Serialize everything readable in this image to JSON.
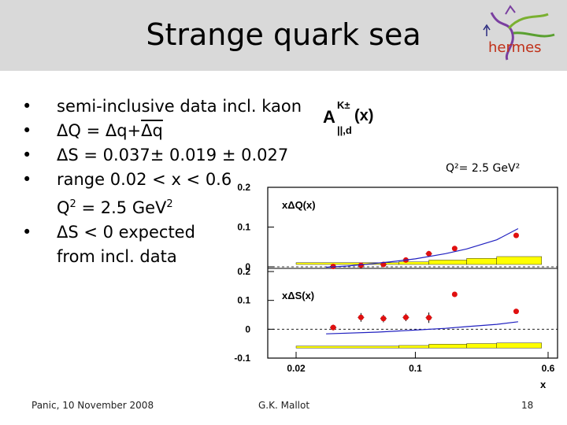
{
  "slide": {
    "title": "Strange quark sea",
    "logo_text": "hermes",
    "bullets": [
      {
        "marker": "•",
        "text": "semi-inclusive data incl. kaon"
      },
      {
        "marker": "•",
        "pre": "ΔQ = Δq+",
        "over": "Δq",
        "post": ""
      },
      {
        "marker": "•",
        "text": "ΔS = 0.037± 0.019 ± 0.027"
      },
      {
        "marker": "•",
        "text": "range 0.02 < x < 0.6"
      },
      {
        "marker": "",
        "pre": "Q",
        "sup1": "2",
        "mid": " = 2.5 GeV",
        "sup2": "2"
      },
      {
        "marker": "•",
        "text": "ΔS < 0 expected"
      },
      {
        "marker": "",
        "text": "from incl. data"
      }
    ],
    "footer_left": "Panic, 10 November 2008",
    "footer_center": "G.K. Mallot",
    "page_number": "18"
  },
  "chart_data": {
    "type": "scatter",
    "title_main": "A",
    "title_sup": "K±",
    "title_sub": "||,d",
    "title_arg": "(x)",
    "annotation": "Q²= 2.5 GeV²",
    "x_axis_label": "x",
    "x_scale": "log",
    "x_ticks": [
      "0.02",
      "0.1",
      "0.6"
    ],
    "panels": [
      {
        "label": "xΔQ(x)",
        "ylim": [
          0,
          0.2
        ],
        "y_ticks": [
          "0.2",
          "0.1",
          "0"
        ],
        "series": [
          {
            "kind": "points",
            "x": [
              0.033,
              0.048,
              0.065,
              0.088,
              0.12,
              0.17,
              0.39
            ],
            "y": [
              0.001,
              0.004,
              0.006,
              0.017,
              0.033,
              0.046,
              0.079
            ],
            "err": [
              0.003,
              0.005,
              0.005,
              0.005,
              0.007,
              0,
              0
            ],
            "color": "#e01010"
          },
          {
            "kind": "curve",
            "x": [
              0.03,
              0.04,
              0.05,
              0.07,
              0.1,
              0.15,
              0.2,
              0.3,
              0.4
            ],
            "y": [
              -0.001,
              0.002,
              0.006,
              0.012,
              0.02,
              0.033,
              0.045,
              0.068,
              0.096
            ],
            "color": "#2020c0"
          }
        ],
        "systematic_band": {
          "x": [
            0.02,
            0.08,
            0.12,
            0.2,
            0.3,
            0.55
          ],
          "h": [
            0.002,
            0.003,
            0.005,
            0.007,
            0.009,
            0.012
          ],
          "color": "#ffff00"
        }
      },
      {
        "label": "xΔS(x)",
        "ylim": [
          -0.1,
          0.2
        ],
        "y_ticks": [
          "0.2",
          "0.1",
          "0",
          "-0.1"
        ],
        "series": [
          {
            "kind": "points",
            "x": [
              0.033,
              0.048,
              0.065,
              0.088,
              0.12,
              0.17,
              0.39
            ],
            "y": [
              0.006,
              0.041,
              0.037,
              0.041,
              0.04,
              0.121,
              0.062
            ],
            "err": [
              0.01,
              0.015,
              0.013,
              0.013,
              0.018,
              0,
              0
            ],
            "color": "#e01010"
          },
          {
            "kind": "curve",
            "x": [
              0.03,
              0.06,
              0.1,
              0.15,
              0.2,
              0.3,
              0.4
            ],
            "y": [
              -0.016,
              -0.01,
              -0.003,
              0.003,
              0.009,
              0.017,
              0.026
            ],
            "color": "#2020c0"
          }
        ],
        "systematic_band": {
          "x": [
            0.02,
            0.08,
            0.12,
            0.2,
            0.3,
            0.55
          ],
          "h": [
            0.003,
            0.004,
            0.006,
            0.007,
            0.008,
            0.01
          ],
          "color": "#ffff00"
        }
      }
    ]
  }
}
